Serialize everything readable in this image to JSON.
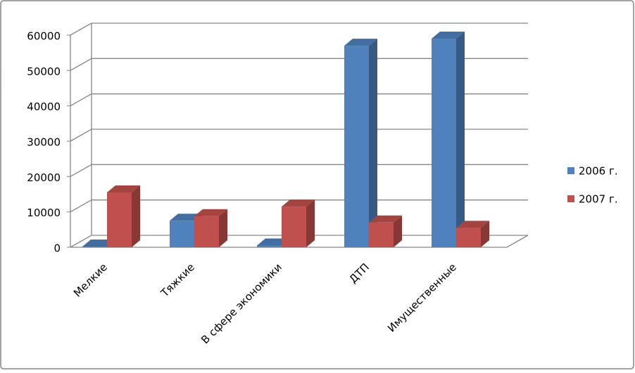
{
  "chart_data": {
    "type": "bar3d",
    "categories": [
      "Мелкие",
      "Тяжкие",
      "В сфере экономики",
      "ДТП",
      "Имущественные"
    ],
    "series": [
      {
        "name": "2006 г.",
        "color": "#4f81bd",
        "values": [
          200,
          7500,
          500,
          57000,
          59000
        ]
      },
      {
        "name": "2007 г.",
        "color": "#c0504d",
        "values": [
          15500,
          8800,
          11500,
          7000,
          5500
        ]
      }
    ],
    "ylim": [
      0,
      60000
    ],
    "yticks": [
      0,
      10000,
      20000,
      30000,
      40000,
      50000,
      60000
    ],
    "grid": true,
    "legend": "right"
  }
}
